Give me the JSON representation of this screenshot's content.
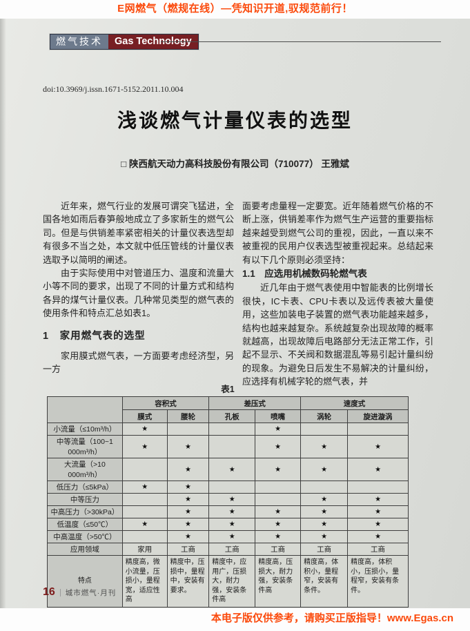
{
  "banner_top": "E网燃气（燃规在线）—凭知识开道,驭规范前行！",
  "banner_bottom": "本电子版仅供参考，请购买正版指导！www.Egas.cn",
  "header": {
    "badge_cn": "燃气技术",
    "badge_en": "Gas Technology"
  },
  "article": {
    "doi": "doi:10.3969/j.issn.1671-5152.2011.10.004",
    "title": "浅谈燃气计量仪表的选型",
    "author_line": "□  陕西航天动力高科技股份有限公司（710077） 王雅斌",
    "col_left": {
      "p1": "近年来，燃气行业的发展可谓突飞猛进，全国各地如雨后春笋般地成立了多家新生的燃气公司。但是与供销差率紧密相关的计量仪表选型却有很多不当之处，本文就中低压管线的计量仪表选取予以简明的阐述。",
      "p2": "由于实际使用中对管道压力、温度和流量大小等不同的要求，出现了不同的计量方式和结构各异的煤气计量仪表。几种常见类型的燃气表的使用条件和特点汇总如表1。",
      "h1": "1　家用燃气表的选型",
      "p3": "家用膜式燃气表，一方面要考虑经济型，另一方"
    },
    "col_right": {
      "p1": "面要考虑量程一定要宽。近年随着燃气价格的不断上涨，供销差率作为燃气生产运营的重要指标越来越受到燃气公司的重视，因此，一直以来不被重视的民用户仪表选型被重视起来。总结起来有以下几个原则必须坚持：",
      "h11": "1.1　应选用机械数码轮燃气表",
      "p2": "近几年由于燃气表使用中智能表的比例增长很快，IC卡表、CPU卡表以及远传表被大量使用，这些加装电子装置的燃气表功能越来越多，结构也越来越复杂。系统越复杂出现故障的概率就越高，出现故障后电路部分无法正常工作，引起不显示、不关阀和数据混乱等易引起计量纠纷的现象。为避免日后发生不易解决的计量纠纷，应选择有机械字轮的燃气表，并"
    }
  },
  "table": {
    "caption": "表1",
    "header_groups": [
      {
        "label": "容积式",
        "span": 2
      },
      {
        "label": "差压式",
        "span": 2
      },
      {
        "label": "速度式",
        "span": 2
      }
    ],
    "sub_columns": [
      "膜式",
      "腰轮",
      "孔板",
      "喷嘴",
      "涡轮",
      "旋进漩涡"
    ],
    "star_glyph": "★",
    "criteria_rows": [
      {
        "label": "小流量（≤10m³/h）",
        "marks": [
          1,
          0,
          0,
          1,
          0,
          0
        ]
      },
      {
        "label": "中等流量（100~1 000m³/h）",
        "marks": [
          1,
          1,
          0,
          1,
          1,
          1
        ]
      },
      {
        "label": "大流量（>10 000m³/h）",
        "marks": [
          0,
          1,
          1,
          1,
          1,
          1
        ]
      },
      {
        "label": "低压力（≤5kPa）",
        "marks": [
          1,
          1,
          0,
          0,
          0,
          0
        ]
      },
      {
        "label": "中等压力",
        "marks": [
          0,
          1,
          1,
          0,
          1,
          1
        ]
      },
      {
        "label": "中高压力（>30kPa）",
        "marks": [
          0,
          1,
          1,
          1,
          1,
          1
        ]
      },
      {
        "label": "低温度（≤50℃）",
        "marks": [
          1,
          1,
          1,
          1,
          1,
          1
        ]
      },
      {
        "label": "中高温度（>50℃）",
        "marks": [
          0,
          1,
          1,
          1,
          1,
          1
        ]
      }
    ],
    "application_row": {
      "label": "应用领域",
      "values": [
        "家用",
        "工商",
        "工商",
        "工商",
        "工商",
        "工商"
      ]
    },
    "features_row": {
      "label": "特点",
      "values": [
        "精度高，微小流量，压损小，量程宽，适应性高",
        "精度中，压损中，量程中，安装有要求。",
        "精度中，应用广，压损大，耐力强，安装条件高",
        "精度高，压损大，耐力强，安装条件高",
        "精度高，体积小，量程窄，安装有条件。",
        "精度高，体积小，压损小，量程窄，安装有条件。"
      ]
    }
  },
  "footer": {
    "page_number": "16",
    "journal": "城市燃气·月刊"
  },
  "colors": {
    "banner_text": "#fb4a0c",
    "badge_cn_bg": "#6d7a8c",
    "badge_en_bg": "#771f23",
    "page_bg": "#dfe1dd",
    "table_header_bg": "#c1c3be",
    "page_number": "#7d1b1b"
  }
}
